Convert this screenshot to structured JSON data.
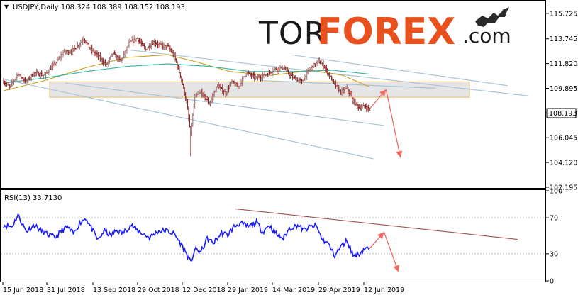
{
  "header": {
    "instrument_info": "USDJPY,Daily  108.324 108.389 108.152 108.193"
  },
  "watermark": {
    "brand_prefix": "TOR",
    "brand_main": "FOREX",
    "brand_suffix": ".com",
    "prefix_color": "#1a1a1a",
    "main_color": "#e8501e"
  },
  "price_badge": "108.193",
  "rsi_label": "RSI(13) 33.7130",
  "chart_data": [
    {
      "type": "candlestick",
      "title": "USDJPY,Daily",
      "ohlc_last": {
        "open": 108.324,
        "high": 108.389,
        "low": 108.152,
        "close": 108.193
      },
      "y_ticks": [
        "115.725",
        "113.745",
        "111.820",
        "109.895",
        "107.970",
        "106.045",
        "104.120",
        "102.195"
      ],
      "ylim": [
        102.195,
        116.6
      ],
      "x_ticks": [
        "15 Jun 2018",
        "31 Jul 2018",
        "13 Sep 2018",
        "29 Oct 2018",
        "12 Dec 2018",
        "29 Jan 2019",
        "14 Mar 2019",
        "29 Apr 2019",
        "12 Jun 2019"
      ],
      "last_price": 108.193,
      "price_key_points": [
        [
          0,
          110.4
        ],
        [
          6,
          110.0
        ],
        [
          14,
          111.0
        ],
        [
          22,
          110.4
        ],
        [
          30,
          111.1
        ],
        [
          40,
          110.9
        ],
        [
          52,
          112.0
        ],
        [
          58,
          112.7
        ],
        [
          66,
          112.8
        ],
        [
          72,
          113.2
        ],
        [
          78,
          113.8
        ],
        [
          84,
          113.0
        ],
        [
          92,
          112.4
        ],
        [
          100,
          111.7
        ],
        [
          106,
          112.6
        ],
        [
          114,
          112.0
        ],
        [
          122,
          113.4
        ],
        [
          130,
          113.8
        ],
        [
          138,
          112.9
        ],
        [
          146,
          113.5
        ],
        [
          154,
          113.2
        ],
        [
          160,
          113.1
        ],
        [
          166,
          112.4
        ],
        [
          172,
          110.9
        ],
        [
          178,
          108.8
        ],
        [
          182,
          106.3
        ],
        [
          186,
          109.2
        ],
        [
          192,
          109.6
        ],
        [
          200,
          108.7
        ],
        [
          208,
          110.1
        ],
        [
          216,
          109.5
        ],
        [
          222,
          110.4
        ],
        [
          228,
          110.0
        ],
        [
          236,
          111.1
        ],
        [
          246,
          110.7
        ],
        [
          256,
          111.0
        ],
        [
          264,
          111.4
        ],
        [
          272,
          111.5
        ],
        [
          280,
          110.8
        ],
        [
          290,
          110.4
        ],
        [
          298,
          111.4
        ],
        [
          306,
          112.0
        ],
        [
          312,
          111.6
        ],
        [
          316,
          111.0
        ],
        [
          322,
          110.2
        ],
        [
          328,
          109.6
        ],
        [
          334,
          109.9
        ],
        [
          340,
          108.9
        ],
        [
          346,
          108.4
        ],
        [
          352,
          108.5
        ],
        [
          356,
          108.19
        ]
      ],
      "moving_averages": [
        {
          "color": "#c9a227",
          "points": [
            [
              0,
              109.7
            ],
            [
              40,
              110.5
            ],
            [
              80,
              111.5
            ],
            [
              120,
              112.3
            ],
            [
              160,
              112.5
            ],
            [
              190,
              111.9
            ],
            [
              220,
              111.2
            ],
            [
              260,
              110.9
            ],
            [
              300,
              111.3
            ],
            [
              330,
              110.9
            ],
            [
              356,
              110.0
            ]
          ]
        },
        {
          "color": "#2ab5a0",
          "points": [
            [
              0,
              110.3
            ],
            [
              40,
              110.7
            ],
            [
              80,
              111.2
            ],
            [
              120,
              111.6
            ],
            [
              160,
              111.8
            ],
            [
              200,
              111.6
            ],
            [
              240,
              111.2
            ],
            [
              280,
              111.2
            ],
            [
              320,
              111.3
            ],
            [
              356,
              111.0
            ]
          ]
        }
      ],
      "support_zone": [
        109.2,
        110.4
      ],
      "trend_channels": [
        [
          [
            0,
            110.6
          ],
          [
            360,
            104.4
          ]
        ],
        [
          [
            60,
            110.3
          ],
          [
            370,
            107.0
          ]
        ],
        [
          [
            120,
            112.9
          ],
          [
            510,
            109.3
          ]
        ],
        [
          [
            250,
            110.5
          ],
          [
            420,
            109.9
          ]
        ],
        [
          [
            280,
            112.5
          ],
          [
            490,
            110.1
          ]
        ]
      ],
      "forecast_path": [
        [
          356,
          108.3
        ],
        [
          372,
          109.8
        ],
        [
          386,
          104.5
        ]
      ]
    },
    {
      "type": "line",
      "title": "RSI(13) 33.7130",
      "y_ticks": [
        "100",
        "70",
        "30",
        "0"
      ],
      "ylim": [
        0,
        100
      ],
      "last_value": 33.713,
      "rsi_key_points": [
        [
          0,
          62
        ],
        [
          8,
          60
        ],
        [
          14,
          73
        ],
        [
          22,
          55
        ],
        [
          30,
          62
        ],
        [
          36,
          56
        ],
        [
          42,
          52
        ],
        [
          50,
          48
        ],
        [
          56,
          55
        ],
        [
          62,
          60
        ],
        [
          68,
          52
        ],
        [
          74,
          64
        ],
        [
          80,
          70
        ],
        [
          86,
          57
        ],
        [
          92,
          45
        ],
        [
          98,
          56
        ],
        [
          104,
          50
        ],
        [
          110,
          56
        ],
        [
          116,
          53
        ],
        [
          124,
          62
        ],
        [
          130,
          56
        ],
        [
          136,
          52
        ],
        [
          142,
          48
        ],
        [
          150,
          55
        ],
        [
          158,
          56
        ],
        [
          166,
          52
        ],
        [
          172,
          42
        ],
        [
          178,
          30
        ],
        [
          182,
          20
        ],
        [
          186,
          35
        ],
        [
          192,
          32
        ],
        [
          198,
          47
        ],
        [
          204,
          42
        ],
        [
          212,
          53
        ],
        [
          218,
          51
        ],
        [
          224,
          60
        ],
        [
          230,
          64
        ],
        [
          238,
          60
        ],
        [
          246,
          65
        ],
        [
          252,
          54
        ],
        [
          258,
          62
        ],
        [
          266,
          51
        ],
        [
          272,
          47
        ],
        [
          278,
          58
        ],
        [
          286,
          62
        ],
        [
          292,
          56
        ],
        [
          298,
          60
        ],
        [
          304,
          61
        ],
        [
          310,
          46
        ],
        [
          316,
          41
        ],
        [
          322,
          28
        ],
        [
          328,
          38
        ],
        [
          334,
          45
        ],
        [
          340,
          28
        ],
        [
          346,
          30
        ],
        [
          352,
          37
        ],
        [
          356,
          33.71
        ]
      ],
      "resistance_line": [
        [
          225,
          80
        ],
        [
          500,
          46
        ]
      ],
      "forecast_path": [
        [
          356,
          36
        ],
        [
          370,
          54
        ],
        [
          384,
          10
        ]
      ]
    }
  ]
}
